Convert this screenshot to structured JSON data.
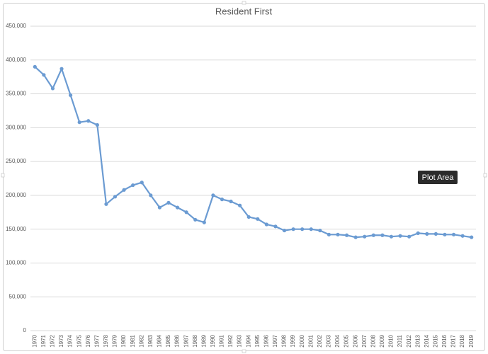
{
  "chart_data": {
    "type": "line",
    "title": "Resident First",
    "categories": [
      "1970",
      "1971",
      "1972",
      "1973",
      "1974",
      "1975",
      "1976",
      "1977",
      "1978",
      "1979",
      "1980",
      "1981",
      "1982",
      "1983",
      "1984",
      "1985",
      "1986",
      "1987",
      "1988",
      "1989",
      "1990",
      "1991",
      "1992",
      "1993",
      "1994",
      "1995",
      "1996",
      "1997",
      "1998",
      "1999",
      "2000",
      "2001",
      "2002",
      "2003",
      "2004",
      "2005",
      "2006",
      "2007",
      "2008",
      "2009",
      "2010",
      "2011",
      "2012",
      "2013",
      "2014",
      "2015",
      "2016",
      "2017",
      "2018",
      "2019"
    ],
    "values": [
      390000,
      378000,
      358000,
      387000,
      348000,
      308000,
      310000,
      304000,
      187000,
      198000,
      208000,
      215000,
      219000,
      200000,
      182000,
      189000,
      182000,
      175000,
      164000,
      160000,
      200000,
      194000,
      191000,
      185000,
      168000,
      165000,
      157000,
      154000,
      148000,
      150000,
      150000,
      150000,
      148000,
      142000,
      142000,
      141000,
      138000,
      139000,
      141000,
      141000,
      139000,
      140000,
      139000,
      144000,
      143000,
      143000,
      142000,
      142000,
      140000,
      138000
    ],
    "color": "#6b9bd2",
    "ylim": [
      0,
      450000
    ],
    "yticks": [
      0,
      {
        "value": 50000,
        "label": "50,000"
      },
      {
        "value": 100000,
        "label": "100,000"
      },
      {
        "value": 150000,
        "label": "150,000"
      },
      {
        "value": 200000,
        "label": "200,000"
      },
      {
        "value": 250000,
        "label": "250,000"
      },
      {
        "value": 300000,
        "label": "300,000"
      },
      {
        "value": 350000,
        "label": "350,000"
      },
      {
        "value": 400000,
        "label": "400,000"
      },
      {
        "value": 450000,
        "label": "450,000"
      }
    ],
    "grid": true,
    "tooltip": "Plot Area"
  }
}
